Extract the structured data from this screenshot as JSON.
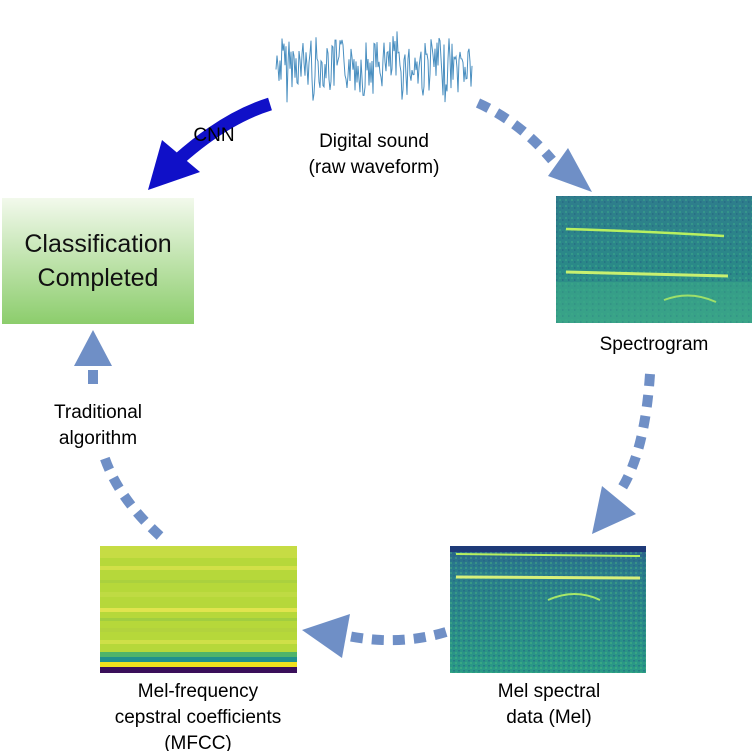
{
  "nodes": {
    "waveform": {
      "line1": "Digital sound",
      "line2": "(raw waveform)"
    },
    "spectrogram": {
      "label": "Spectrogram"
    },
    "mel": {
      "line1": "Mel spectral",
      "line2": "data (Mel)"
    },
    "mfcc": {
      "line1": "Mel-frequency",
      "line2": "cepstral coefficients",
      "line3": "(MFCC)"
    },
    "classification": {
      "line1": "Classification",
      "line2": "Completed"
    }
  },
  "edges": {
    "cnn": {
      "label": "CNN"
    },
    "traditional": {
      "line1": "Traditional",
      "line2": "algorithm"
    }
  },
  "colors": {
    "cnn_arrow": "#1010c8",
    "dashed_arrow": "#6f8fc6",
    "waveform": "#4a8fc0",
    "box_top": "#f2f9ec",
    "box_bottom": "#8ccd6c"
  }
}
